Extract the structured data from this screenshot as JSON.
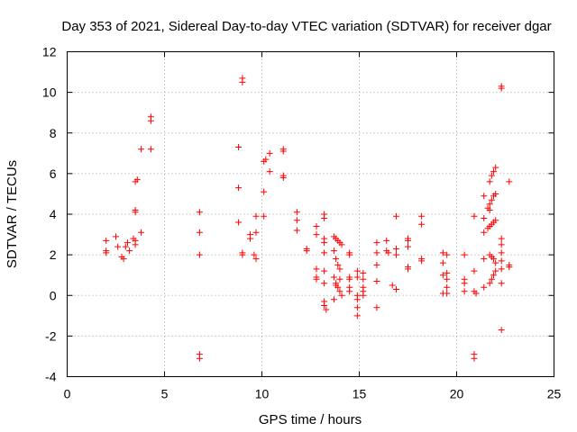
{
  "chart_data": {
    "type": "scatter",
    "title": "Day 353 of 2021, Sidereal Day-to-day VTEC variation (SDTVAR) for receiver dgar",
    "xlabel": "GPS time / hours",
    "ylabel": "SDTVAR / TECUs",
    "xlim": [
      0,
      25
    ],
    "ylim": [
      -4,
      12
    ],
    "xticks": [
      0,
      5,
      10,
      15,
      20,
      25
    ],
    "yticks": [
      -4,
      -2,
      0,
      2,
      4,
      6,
      8,
      10,
      12
    ],
    "xtick_labels": [
      "0",
      "5",
      "10",
      "15",
      "20",
      "25"
    ],
    "ytick_labels": [
      "-4",
      "-2",
      "0",
      "2",
      "4",
      "6",
      "8",
      "10",
      "12"
    ],
    "grid": true,
    "marker": "plus",
    "color": "#ff0000",
    "series": [
      {
        "name": "dgar",
        "points": [
          [
            2.0,
            2.7
          ],
          [
            2.0,
            2.2
          ],
          [
            2.0,
            2.1
          ],
          [
            2.5,
            2.9
          ],
          [
            2.6,
            2.4
          ],
          [
            2.8,
            1.9
          ],
          [
            2.9,
            1.8
          ],
          [
            3.0,
            2.4
          ],
          [
            3.1,
            2.6
          ],
          [
            3.2,
            2.2
          ],
          [
            3.4,
            2.8
          ],
          [
            3.5,
            2.5
          ],
          [
            3.5,
            2.7
          ],
          [
            3.5,
            4.1
          ],
          [
            3.5,
            4.2
          ],
          [
            3.5,
            5.6
          ],
          [
            3.6,
            5.7
          ],
          [
            3.8,
            3.1
          ],
          [
            3.8,
            7.2
          ],
          [
            4.3,
            8.6
          ],
          [
            4.3,
            8.8
          ],
          [
            4.3,
            7.2
          ],
          [
            6.8,
            4.1
          ],
          [
            6.8,
            3.1
          ],
          [
            6.8,
            2.0
          ],
          [
            6.8,
            -2.9
          ],
          [
            6.8,
            -3.1
          ],
          [
            8.8,
            7.3
          ],
          [
            8.8,
            5.3
          ],
          [
            8.8,
            3.6
          ],
          [
            9.0,
            10.7
          ],
          [
            9.0,
            10.5
          ],
          [
            9.0,
            2.0
          ],
          [
            9.0,
            2.1
          ],
          [
            9.4,
            2.8
          ],
          [
            9.4,
            3.0
          ],
          [
            9.6,
            2.0
          ],
          [
            9.7,
            1.8
          ],
          [
            9.7,
            3.1
          ],
          [
            9.7,
            3.9
          ],
          [
            10.1,
            3.9
          ],
          [
            10.1,
            5.1
          ],
          [
            10.1,
            6.6
          ],
          [
            10.2,
            6.7
          ],
          [
            10.4,
            7.0
          ],
          [
            10.4,
            6.1
          ],
          [
            11.1,
            7.1
          ],
          [
            11.1,
            7.2
          ],
          [
            11.1,
            5.9
          ],
          [
            11.1,
            5.8
          ],
          [
            11.8,
            4.1
          ],
          [
            11.8,
            3.7
          ],
          [
            11.8,
            3.2
          ],
          [
            12.3,
            2.3
          ],
          [
            12.3,
            2.2
          ],
          [
            12.8,
            3.4
          ],
          [
            12.8,
            3.0
          ],
          [
            12.8,
            1.3
          ],
          [
            12.8,
            0.9
          ],
          [
            12.8,
            0.8
          ],
          [
            13.2,
            4.0
          ],
          [
            13.2,
            3.8
          ],
          [
            13.2,
            2.8
          ],
          [
            13.2,
            2.6
          ],
          [
            13.2,
            2.1
          ],
          [
            13.2,
            1.2
          ],
          [
            13.2,
            0.6
          ],
          [
            13.2,
            -0.3
          ],
          [
            13.2,
            -0.5
          ],
          [
            13.3,
            -0.7
          ],
          [
            13.7,
            2.9
          ],
          [
            13.8,
            2.8
          ],
          [
            13.9,
            2.7
          ],
          [
            14.0,
            2.6
          ],
          [
            14.1,
            2.5
          ],
          [
            13.7,
            2.2
          ],
          [
            13.8,
            1.8
          ],
          [
            13.9,
            1.5
          ],
          [
            14.0,
            1.3
          ],
          [
            13.7,
            0.9
          ],
          [
            13.8,
            0.6
          ],
          [
            13.9,
            0.4
          ],
          [
            14.0,
            0.2
          ],
          [
            14.1,
            0.0
          ],
          [
            13.7,
            -0.2
          ],
          [
            13.8,
            0.5
          ],
          [
            14.0,
            0.8
          ],
          [
            14.5,
            2.1
          ],
          [
            14.5,
            2.0
          ],
          [
            14.5,
            0.9
          ],
          [
            14.5,
            0.8
          ],
          [
            14.5,
            0.4
          ],
          [
            14.5,
            0.2
          ],
          [
            14.9,
            1.2
          ],
          [
            14.9,
            0.9
          ],
          [
            14.9,
            0.0
          ],
          [
            14.9,
            -0.2
          ],
          [
            14.9,
            -0.6
          ],
          [
            14.9,
            -1.0
          ],
          [
            15.2,
            1.1
          ],
          [
            15.2,
            0.8
          ],
          [
            15.2,
            0.4
          ],
          [
            15.2,
            0.2
          ],
          [
            15.2,
            0.0
          ],
          [
            15.9,
            2.6
          ],
          [
            15.9,
            2.1
          ],
          [
            15.9,
            1.5
          ],
          [
            15.9,
            0.7
          ],
          [
            15.9,
            -0.6
          ],
          [
            16.4,
            2.7
          ],
          [
            16.4,
            2.2
          ],
          [
            16.5,
            2.1
          ],
          [
            16.7,
            0.5
          ],
          [
            16.9,
            3.9
          ],
          [
            16.9,
            2.3
          ],
          [
            16.9,
            2.0
          ],
          [
            16.9,
            0.3
          ],
          [
            17.5,
            2.8
          ],
          [
            17.5,
            2.7
          ],
          [
            17.5,
            2.4
          ],
          [
            17.5,
            1.4
          ],
          [
            17.5,
            1.3
          ],
          [
            18.2,
            3.9
          ],
          [
            18.2,
            3.5
          ],
          [
            18.2,
            1.8
          ],
          [
            18.2,
            1.7
          ],
          [
            19.3,
            2.1
          ],
          [
            19.3,
            1.6
          ],
          [
            19.3,
            1.0
          ],
          [
            19.3,
            0.1
          ],
          [
            19.5,
            2.0
          ],
          [
            19.5,
            1.1
          ],
          [
            19.5,
            0.8
          ],
          [
            19.5,
            0.4
          ],
          [
            19.5,
            0.1
          ],
          [
            20.4,
            2.0
          ],
          [
            20.4,
            0.8
          ],
          [
            20.4,
            0.6
          ],
          [
            20.4,
            0.2
          ],
          [
            20.9,
            3.9
          ],
          [
            20.9,
            1.2
          ],
          [
            20.9,
            0.2
          ],
          [
            20.9,
            -2.9
          ],
          [
            20.9,
            -3.1
          ],
          [
            21.0,
            0.1
          ],
          [
            21.4,
            4.9
          ],
          [
            21.4,
            3.8
          ],
          [
            21.4,
            3.1
          ],
          [
            21.4,
            1.8
          ],
          [
            21.4,
            0.4
          ],
          [
            21.6,
            4.3
          ],
          [
            21.6,
            3.3
          ],
          [
            21.7,
            5.6
          ],
          [
            21.7,
            4.5
          ],
          [
            21.7,
            4.2
          ],
          [
            21.7,
            3.4
          ],
          [
            21.7,
            2.0
          ],
          [
            21.7,
            0.6
          ],
          [
            21.8,
            5.9
          ],
          [
            21.8,
            4.7
          ],
          [
            21.8,
            3.5
          ],
          [
            21.8,
            1.9
          ],
          [
            21.8,
            0.8
          ],
          [
            21.9,
            6.1
          ],
          [
            21.9,
            4.9
          ],
          [
            21.9,
            3.6
          ],
          [
            21.9,
            1.8
          ],
          [
            21.9,
            1.0
          ],
          [
            22.0,
            6.3
          ],
          [
            22.0,
            5.0
          ],
          [
            22.0,
            3.7
          ],
          [
            22.0,
            1.6
          ],
          [
            22.0,
            1.2
          ],
          [
            22.3,
            10.3
          ],
          [
            22.3,
            10.2
          ],
          [
            22.3,
            2.8
          ],
          [
            22.3,
            2.5
          ],
          [
            22.3,
            2.1
          ],
          [
            22.3,
            1.7
          ],
          [
            22.3,
            1.3
          ],
          [
            22.3,
            0.6
          ],
          [
            22.3,
            -1.7
          ],
          [
            22.7,
            5.6
          ],
          [
            22.7,
            1.5
          ],
          [
            22.7,
            1.4
          ]
        ]
      }
    ]
  }
}
